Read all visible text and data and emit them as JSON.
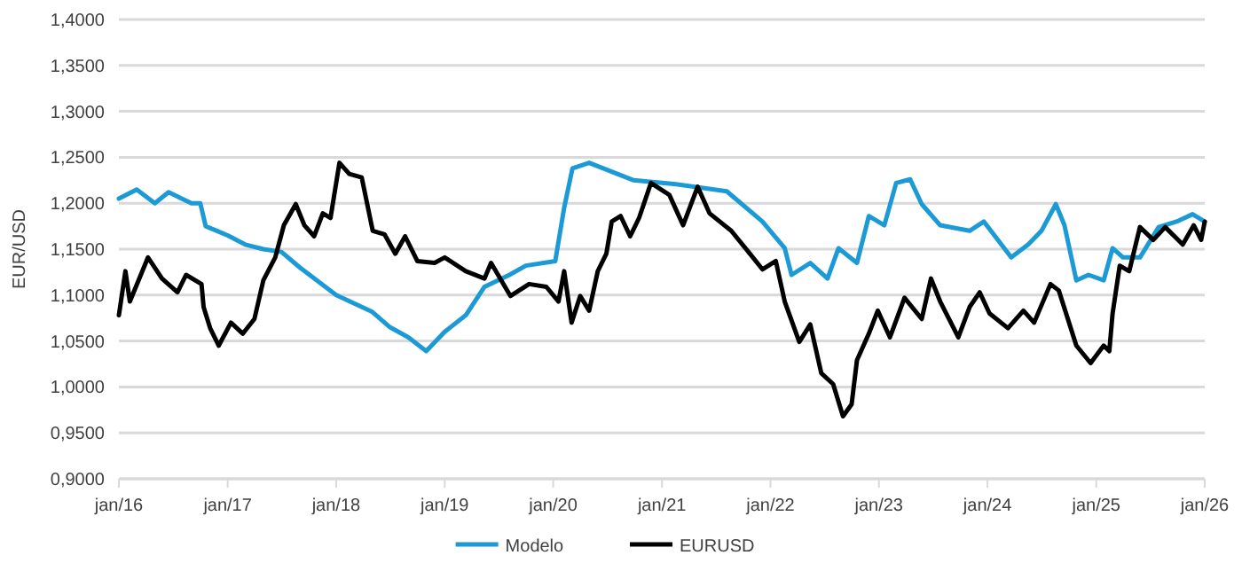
{
  "chart_data": {
    "type": "line",
    "ylabel": "EUR/USD",
    "xlim": [
      "2016-01-01",
      "2026-01-01"
    ],
    "xticks": [
      {
        "value": "2016-01-01",
        "label": "jan/16"
      },
      {
        "value": "2017-01-01",
        "label": "jan/17"
      },
      {
        "value": "2018-01-01",
        "label": "jan/18"
      },
      {
        "value": "2019-01-01",
        "label": "jan/19"
      },
      {
        "value": "2020-01-01",
        "label": "jan/20"
      },
      {
        "value": "2021-01-01",
        "label": "jan/21"
      },
      {
        "value": "2022-01-01",
        "label": "jan/22"
      },
      {
        "value": "2023-01-01",
        "label": "jan/23"
      },
      {
        "value": "2024-01-01",
        "label": "jan/24"
      },
      {
        "value": "2025-01-01",
        "label": "jan/25"
      },
      {
        "value": "2026-01-01",
        "label": "jan/26"
      }
    ],
    "ylim": [
      0.9,
      1.4
    ],
    "yticks": [
      {
        "value": 0.9,
        "label": "0,9000"
      },
      {
        "value": 0.95,
        "label": "0,9500"
      },
      {
        "value": 1.0,
        "label": "1,0000"
      },
      {
        "value": 1.05,
        "label": "1,0500"
      },
      {
        "value": 1.1,
        "label": "1,1000"
      },
      {
        "value": 1.15,
        "label": "1,1500"
      },
      {
        "value": 1.2,
        "label": "1,2000"
      },
      {
        "value": 1.25,
        "label": "1,2500"
      },
      {
        "value": 1.3,
        "label": "1,3000"
      },
      {
        "value": 1.35,
        "label": "1,3500"
      },
      {
        "value": 1.4,
        "label": "1,4000"
      }
    ],
    "grid": "y",
    "legend": "bottom",
    "marker": "none",
    "line_style": "solid",
    "series": [
      {
        "name": "Modelo",
        "color": "#1b9ad6",
        "x": [
          "2016-01-01",
          "2016-03-01",
          "2016-05-01",
          "2016-06-16",
          "2016-09-01",
          "2016-10-01",
          "2016-10-19",
          "2017-01-01",
          "2017-03-01",
          "2017-05-01",
          "2017-07-01",
          "2017-09-01",
          "2018-01-01",
          "2018-05-01",
          "2018-07-01",
          "2018-09-01",
          "2018-10-31",
          "2019-01-01",
          "2019-03-13",
          "2019-05-15",
          "2019-08-07",
          "2019-10-01",
          "2020-01-08",
          "2020-02-07",
          "2020-03-06",
          "2020-05-01",
          "2020-09-28",
          "2021-02-10",
          "2021-08-07",
          "2021-12-05",
          "2022-02-18",
          "2022-03-13",
          "2022-05-15",
          "2022-07-12",
          "2022-08-18",
          "2022-10-19",
          "2022-11-28",
          "2023-01-19",
          "2023-02-28",
          "2023-04-16",
          "2023-05-25",
          "2023-07-26",
          "2023-11-02",
          "2023-12-20",
          "2024-03-21",
          "2024-05-17",
          "2024-07-01",
          "2024-08-18",
          "2024-09-16",
          "2024-10-26",
          "2024-12-06",
          "2025-01-26",
          "2025-02-25",
          "2025-04-01",
          "2025-05-28",
          "2025-07-30",
          "2025-09-28",
          "2025-11-21",
          "2026-01-01"
        ],
        "values": [
          1.205,
          1.215,
          1.2,
          1.212,
          1.2,
          1.2,
          1.175,
          1.165,
          1.155,
          1.15,
          1.147,
          1.13,
          1.1,
          1.082,
          1.065,
          1.054,
          1.039,
          1.06,
          1.078,
          1.109,
          1.122,
          1.132,
          1.137,
          1.195,
          1.238,
          1.244,
          1.225,
          1.221,
          1.213,
          1.18,
          1.151,
          1.122,
          1.135,
          1.118,
          1.151,
          1.135,
          1.186,
          1.176,
          1.222,
          1.226,
          1.199,
          1.176,
          1.17,
          1.18,
          1.141,
          1.155,
          1.17,
          1.199,
          1.176,
          1.116,
          1.122,
          1.116,
          1.151,
          1.141,
          1.141,
          1.174,
          1.18,
          1.188,
          1.18
        ]
      },
      {
        "name": "EURUSD",
        "color": "#000000",
        "x": [
          "2016-01-01",
          "2016-01-23",
          "2016-02-07",
          "2016-04-08",
          "2016-05-25",
          "2016-07-16",
          "2016-08-14",
          "2016-10-05",
          "2016-10-12",
          "2016-11-03",
          "2016-12-02",
          "2017-01-12",
          "2017-02-21",
          "2017-04-01",
          "2017-05-01",
          "2017-06-10",
          "2017-07-09",
          "2017-08-18",
          "2017-09-16",
          "2017-10-19",
          "2017-11-17",
          "2017-12-13",
          "2018-01-12",
          "2018-02-14",
          "2018-03-28",
          "2018-05-04",
          "2018-06-13",
          "2018-07-19",
          "2018-08-21",
          "2018-10-01",
          "2018-11-28",
          "2019-01-01",
          "2019-03-13",
          "2019-05-15",
          "2019-06-06",
          "2019-08-10",
          "2019-10-12",
          "2019-12-09",
          "2020-01-19",
          "2020-02-07",
          "2020-03-03",
          "2020-04-01",
          "2020-05-01",
          "2020-05-30",
          "2020-06-28",
          "2020-07-16",
          "2020-08-15",
          "2020-09-16",
          "2020-10-16",
          "2020-11-25",
          "2021-01-26",
          "2021-03-13",
          "2021-05-01",
          "2021-06-10",
          "2021-08-22",
          "2021-10-19",
          "2021-12-05",
          "2022-01-19",
          "2022-02-18",
          "2022-04-08",
          "2022-05-15",
          "2022-06-21",
          "2022-07-31",
          "2022-09-02",
          "2022-10-01",
          "2022-10-19",
          "2022-11-28",
          "2022-12-28",
          "2023-02-07",
          "2023-03-28",
          "2023-05-25",
          "2023-06-25",
          "2023-07-26",
          "2023-09-25",
          "2023-11-02",
          "2023-12-06",
          "2024-01-08",
          "2024-03-10",
          "2024-05-01",
          "2024-06-06",
          "2024-07-31",
          "2024-08-28",
          "2024-10-26",
          "2024-12-13",
          "2025-01-26",
          "2025-02-14",
          "2025-02-25",
          "2025-03-21",
          "2025-04-22",
          "2025-05-28",
          "2025-07-12",
          "2025-08-21",
          "2025-10-19",
          "2025-11-25",
          "2025-12-20",
          "2026-01-01"
        ],
        "values": [
          1.078,
          1.126,
          1.093,
          1.141,
          1.118,
          1.103,
          1.122,
          1.112,
          1.087,
          1.064,
          1.045,
          1.07,
          1.058,
          1.074,
          1.116,
          1.141,
          1.176,
          1.199,
          1.176,
          1.164,
          1.189,
          1.184,
          1.244,
          1.232,
          1.228,
          1.17,
          1.166,
          1.145,
          1.164,
          1.137,
          1.135,
          1.141,
          1.126,
          1.118,
          1.135,
          1.099,
          1.112,
          1.109,
          1.093,
          1.126,
          1.07,
          1.099,
          1.083,
          1.126,
          1.145,
          1.18,
          1.186,
          1.164,
          1.184,
          1.222,
          1.209,
          1.176,
          1.218,
          1.189,
          1.17,
          1.147,
          1.128,
          1.137,
          1.093,
          1.049,
          1.068,
          1.015,
          1.003,
          0.968,
          0.981,
          1.029,
          1.058,
          1.083,
          1.054,
          1.097,
          1.074,
          1.118,
          1.093,
          1.054,
          1.087,
          1.103,
          1.08,
          1.064,
          1.083,
          1.07,
          1.112,
          1.105,
          1.045,
          1.026,
          1.045,
          1.039,
          1.08,
          1.132,
          1.126,
          1.174,
          1.16,
          1.174,
          1.155,
          1.176,
          1.16,
          1.18
        ]
      }
    ]
  }
}
